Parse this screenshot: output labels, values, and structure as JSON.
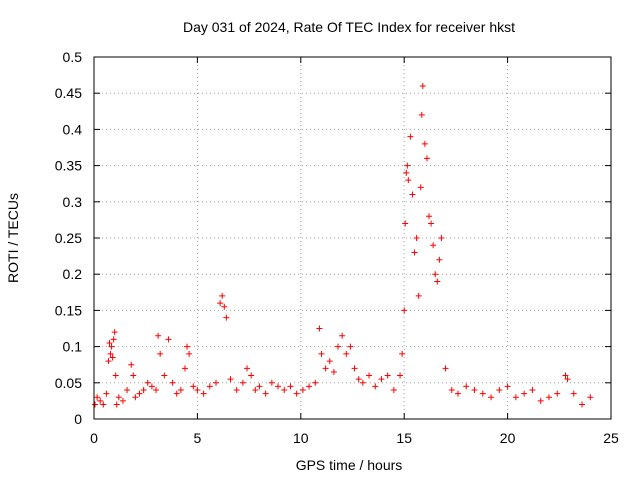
{
  "chart_data": {
    "type": "scatter",
    "title": "Day 031 of 2024, Rate Of TEC Index for receiver hkst",
    "xlabel": "GPS time / hours",
    "ylabel": "ROTI / TECUs",
    "xlim": [
      0,
      25
    ],
    "ylim": [
      0,
      0.5
    ],
    "grid": true,
    "marker": "+",
    "marker_color": "#ff0000",
    "x_ticks": [
      0,
      5,
      10,
      15,
      20,
      25
    ],
    "x_tick_labels": [
      "0",
      "5",
      "10",
      "15",
      "20",
      "25"
    ],
    "y_ticks": [
      0,
      0.05,
      0.1,
      0.15,
      0.2,
      0.25,
      0.3,
      0.35,
      0.4,
      0.45,
      0.5
    ],
    "y_tick_labels": [
      "0",
      "0.05",
      "0.1",
      "0.15",
      "0.2",
      "0.25",
      "0.3",
      "0.35",
      "0.4",
      "0.45",
      "0.5"
    ],
    "series": [
      {
        "name": "ROTI",
        "x": [
          0.05,
          0.15,
          0.3,
          0.45,
          0.6,
          0.7,
          0.75,
          0.8,
          0.85,
          0.9,
          0.95,
          1.0,
          1.05,
          1.1,
          1.2,
          1.4,
          1.6,
          1.8,
          1.9,
          2.0,
          2.2,
          2.4,
          2.6,
          2.8,
          3.0,
          3.1,
          3.2,
          3.4,
          3.6,
          3.8,
          4.0,
          4.2,
          4.4,
          4.5,
          4.6,
          4.8,
          5.0,
          5.3,
          5.6,
          5.9,
          6.1,
          6.2,
          6.3,
          6.4,
          6.6,
          6.9,
          7.2,
          7.4,
          7.6,
          7.8,
          8.0,
          8.3,
          8.6,
          8.9,
          9.2,
          9.5,
          9.8,
          10.1,
          10.4,
          10.7,
          10.9,
          11.0,
          11.2,
          11.4,
          11.6,
          11.8,
          12.0,
          12.2,
          12.4,
          12.6,
          12.8,
          13.0,
          13.3,
          13.6,
          13.9,
          14.2,
          14.5,
          14.8,
          14.9,
          15.0,
          15.05,
          15.1,
          15.15,
          15.2,
          15.3,
          15.4,
          15.5,
          15.6,
          15.7,
          15.8,
          15.85,
          15.9,
          16.0,
          16.1,
          16.2,
          16.3,
          16.4,
          16.5,
          16.6,
          16.7,
          16.8,
          17.0,
          17.3,
          17.6,
          18.0,
          18.4,
          18.8,
          19.2,
          19.6,
          20.0,
          20.4,
          20.8,
          21.2,
          21.6,
          22.0,
          22.4,
          22.8,
          22.9,
          23.2,
          23.6,
          24.0
        ],
        "y": [
          0.02,
          0.03,
          0.025,
          0.02,
          0.035,
          0.08,
          0.105,
          0.09,
          0.1,
          0.085,
          0.11,
          0.12,
          0.06,
          0.02,
          0.03,
          0.025,
          0.04,
          0.075,
          0.06,
          0.03,
          0.035,
          0.04,
          0.05,
          0.045,
          0.04,
          0.115,
          0.09,
          0.06,
          0.11,
          0.05,
          0.035,
          0.04,
          0.07,
          0.1,
          0.09,
          0.045,
          0.04,
          0.035,
          0.045,
          0.05,
          0.16,
          0.17,
          0.155,
          0.14,
          0.055,
          0.04,
          0.05,
          0.07,
          0.06,
          0.04,
          0.045,
          0.035,
          0.05,
          0.045,
          0.04,
          0.045,
          0.035,
          0.04,
          0.045,
          0.05,
          0.125,
          0.09,
          0.07,
          0.08,
          0.065,
          0.1,
          0.115,
          0.09,
          0.1,
          0.07,
          0.055,
          0.05,
          0.06,
          0.045,
          0.055,
          0.06,
          0.04,
          0.06,
          0.09,
          0.15,
          0.27,
          0.34,
          0.35,
          0.33,
          0.39,
          0.31,
          0.23,
          0.25,
          0.17,
          0.32,
          0.42,
          0.46,
          0.38,
          0.36,
          0.28,
          0.27,
          0.24,
          0.2,
          0.19,
          0.22,
          0.25,
          0.07,
          0.04,
          0.035,
          0.045,
          0.04,
          0.035,
          0.03,
          0.04,
          0.045,
          0.03,
          0.035,
          0.04,
          0.025,
          0.03,
          0.035,
          0.06,
          0.055,
          0.035,
          0.02,
          0.03
        ],
        "color": "#ff0000"
      }
    ]
  }
}
